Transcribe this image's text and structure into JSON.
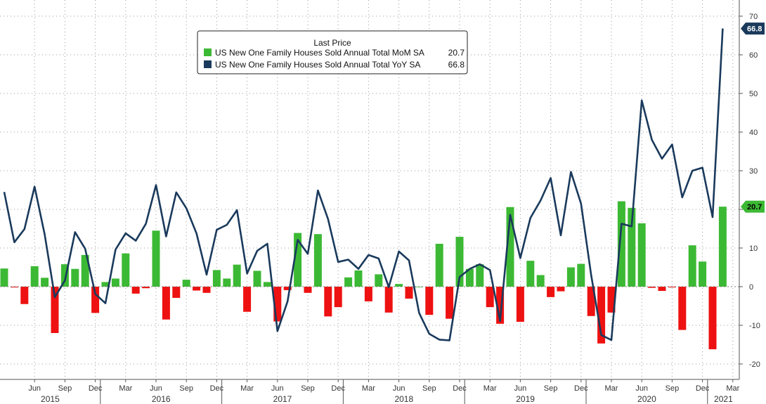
{
  "chart_data": {
    "type": "bar",
    "legend": {
      "title": "Last Price",
      "placement": "top-center",
      "entries": [
        {
          "label": "US New One Family Houses Sold Annual Total MoM SA",
          "value": "20.7",
          "color": "#3cb934"
        },
        {
          "label": "US New One Family Houses Sold Annual Total YoY SA",
          "value": "66.8",
          "color": "#1a3a5c"
        }
      ]
    },
    "ylim": [
      -24,
      72
    ],
    "yticks": [
      -20,
      -10,
      0,
      10,
      20,
      30,
      40,
      50,
      60,
      70
    ],
    "y_axis_side": "right",
    "grid": true,
    "colors": {
      "positive": "#3cb934",
      "negative": "#ee1111",
      "line": "#1a3a5c",
      "flag_green": "#3cb934",
      "flag_navy": "#1a3a5c"
    },
    "month_ticks": [
      "Jun",
      "Sep",
      "Dec",
      "Mar",
      "Jun",
      "Sep",
      "Dec",
      "Mar",
      "Jun",
      "Sep",
      "Dec",
      "Mar",
      "Jun",
      "Sep",
      "Dec",
      "Mar",
      "Jun",
      "Sep",
      "Dec",
      "Mar",
      "Jun",
      "Sep",
      "Dec",
      "Mar"
    ],
    "years": [
      "2015",
      "2016",
      "2017",
      "2018",
      "2019",
      "2020",
      "2021"
    ],
    "x_start": "2015-03",
    "series": [
      {
        "name": "US New One Family Houses Sold Annual Total MoM SA",
        "kind": "bar",
        "values": [
          4.7,
          -0.2,
          -4.5,
          5.3,
          2.3,
          -12.0,
          5.8,
          4.6,
          8.2,
          -6.8,
          1.2,
          2.1,
          8.6,
          -1.8,
          -0.4,
          14.5,
          -8.5,
          -2.9,
          1.8,
          -1.0,
          -1.6,
          4.3,
          2.1,
          5.7,
          -6.5,
          4.1,
          1.2,
          -9.0,
          -0.9,
          13.9,
          -1.6,
          13.6,
          -7.7,
          -5.3,
          2.4,
          4.2,
          -3.8,
          3.2,
          -6.7,
          0.7,
          -3.1,
          0.0,
          -7.3,
          11.1,
          -8.3,
          12.9,
          4.6,
          5.8,
          -5.3,
          -9.6,
          20.6,
          -9.1,
          6.7,
          3.0,
          -2.7,
          -1.2,
          5.0,
          5.9,
          -7.6,
          -14.7,
          -6.7,
          22.1,
          20.4,
          16.4,
          -0.3,
          -1.1,
          -0.2,
          -11.2,
          10.7,
          6.5,
          -16.2,
          20.7
        ]
      },
      {
        "name": "US New One Family Houses Sold Annual Total YoY SA",
        "kind": "line",
        "values": [
          24.5,
          11.5,
          14.9,
          25.9,
          13.5,
          -2.7,
          1.6,
          14.1,
          9.8,
          -1.9,
          -4.3,
          9.6,
          13.8,
          11.9,
          16.3,
          26.3,
          13.0,
          24.4,
          20.3,
          13.8,
          3.1,
          14.7,
          16.0,
          19.8,
          3.4,
          9.3,
          11.1,
          -11.5,
          -3.8,
          12.1,
          8.5,
          24.9,
          17.5,
          6.4,
          7.0,
          4.6,
          8.2,
          7.3,
          -0.1,
          9.1,
          6.8,
          -6.8,
          -12.2,
          -13.7,
          -13.9,
          2.5,
          4.6,
          5.8,
          4.3,
          -8.9,
          18.6,
          7.4,
          17.8,
          22.3,
          28.1,
          13.3,
          29.7,
          21.5,
          3.0,
          -12.5,
          -13.8,
          16.3,
          15.6,
          48.2,
          38.0,
          33.1,
          36.8,
          23.1,
          30.0,
          30.8,
          18.0,
          66.8
        ]
      }
    ],
    "last_values": {
      "yoy": "66.8",
      "mom": "20.7"
    }
  }
}
